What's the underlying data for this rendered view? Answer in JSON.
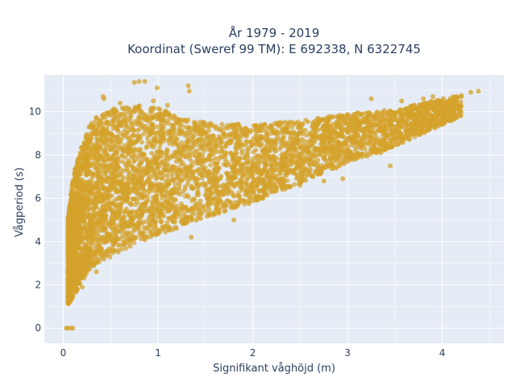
{
  "chart_data": {
    "type": "scatter",
    "title_line1": "År 1979 - 2019",
    "title_line2": "Koordinat (Sweref 99 TM): E 692338, N 6322745",
    "xlabel": "Signifikant våghöjd (m)",
    "ylabel": "Vågperiod (s)",
    "xlim": [
      -0.2,
      4.65
    ],
    "ylim": [
      -0.7,
      11.7
    ],
    "x_ticks": [
      0,
      1,
      2,
      3,
      4
    ],
    "y_ticks": [
      0,
      2,
      4,
      6,
      8,
      10
    ],
    "x_tick_labels": [
      "0",
      "1",
      "2",
      "3",
      "4"
    ],
    "y_tick_labels": [
      "0",
      "2",
      "4",
      "6",
      "8",
      "10"
    ],
    "grid": true,
    "legend": "none",
    "colors": {
      "marker": "#d4a32b",
      "plot_bg": "#e5ecf6",
      "grid": "#ffffff",
      "text": "#2a3f5f"
    },
    "series": [
      {
        "lower_envelope": [
          [
            0.05,
            1.1
          ],
          [
            0.1,
            1.4
          ],
          [
            0.2,
            2.2
          ],
          [
            0.3,
            2.8
          ],
          [
            0.5,
            3.3
          ],
          [
            0.8,
            3.9
          ],
          [
            1.0,
            4.3
          ],
          [
            1.2,
            4.6
          ],
          [
            1.5,
            5.1
          ],
          [
            2.0,
            5.8
          ],
          [
            2.5,
            6.7
          ],
          [
            3.0,
            7.6
          ],
          [
            3.5,
            8.4
          ],
          [
            4.0,
            9.4
          ],
          [
            4.2,
            9.8
          ]
        ],
        "upper_envelope": [
          [
            0.05,
            5.0
          ],
          [
            0.1,
            7.0
          ],
          [
            0.2,
            8.5
          ],
          [
            0.3,
            9.6
          ],
          [
            0.5,
            10.2
          ],
          [
            0.8,
            10.3
          ],
          [
            1.0,
            10.2
          ],
          [
            1.2,
            9.8
          ],
          [
            1.5,
            9.5
          ],
          [
            2.0,
            9.4
          ],
          [
            2.5,
            9.6
          ],
          [
            3.0,
            9.9
          ],
          [
            3.5,
            10.1
          ],
          [
            4.0,
            10.6
          ],
          [
            4.2,
            10.8
          ]
        ],
        "points": [
          [
            0.03,
            0.0
          ],
          [
            0.05,
            0.0
          ],
          [
            0.08,
            0.0
          ],
          [
            0.1,
            0.0
          ],
          [
            0.75,
            11.35
          ],
          [
            0.8,
            11.4
          ],
          [
            0.86,
            11.4
          ],
          [
            0.99,
            11.1
          ],
          [
            1.32,
            11.2
          ],
          [
            1.33,
            10.95
          ],
          [
            0.95,
            10.5
          ],
          [
            1.1,
            10.3
          ],
          [
            0.6,
            10.4
          ],
          [
            0.43,
            10.6
          ],
          [
            0.42,
            10.7
          ],
          [
            4.0,
            10.5
          ],
          [
            4.15,
            10.7
          ],
          [
            4.2,
            10.75
          ],
          [
            4.3,
            10.9
          ],
          [
            4.38,
            10.95
          ],
          [
            3.9,
            10.7
          ],
          [
            3.7,
            10.3
          ],
          [
            3.25,
            10.6
          ],
          [
            3.1,
            9.7
          ],
          [
            3.57,
            10.5
          ],
          [
            3.8,
            10.6
          ],
          [
            3.95,
            10.0
          ],
          [
            4.05,
            10.1
          ],
          [
            2.95,
            9.8
          ],
          [
            2.8,
            9.6
          ],
          [
            3.35,
            8.1
          ],
          [
            3.45,
            7.5
          ],
          [
            2.95,
            6.9
          ],
          [
            2.75,
            6.8
          ],
          [
            2.5,
            6.6
          ],
          [
            1.35,
            4.2
          ],
          [
            1.7,
            5.4
          ],
          [
            1.8,
            5.0
          ],
          [
            0.35,
            2.6
          ],
          [
            0.2,
            1.9
          ],
          [
            0.15,
            1.8
          ],
          [
            0.1,
            1.5
          ]
        ]
      }
    ]
  }
}
